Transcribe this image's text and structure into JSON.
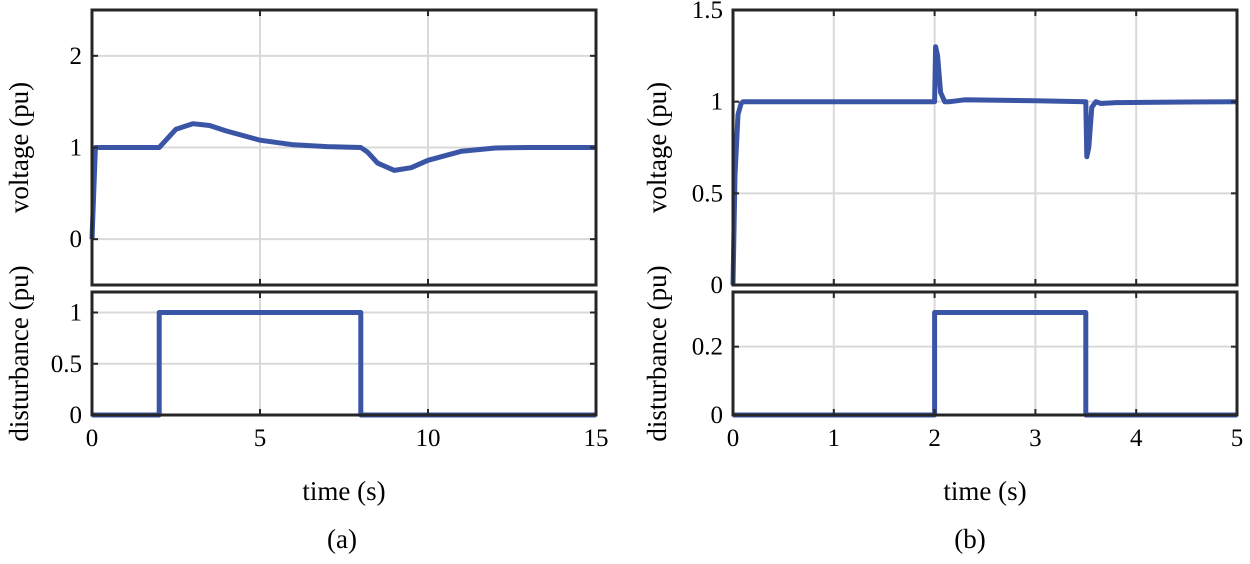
{
  "figure": {
    "colors": {
      "series": "#3b55a6",
      "axes": "#262626",
      "grid": "#d9d9d9"
    },
    "panel_labels": [
      "(a)",
      "(b)"
    ]
  },
  "chart_data": [
    {
      "id": "a-voltage",
      "type": "line",
      "xlabel": "",
      "ylabel": "voltage (pu)",
      "xlim": [
        0,
        15
      ],
      "ylim": [
        -0.5,
        2.5
      ],
      "xticks": [
        0,
        5,
        10,
        15
      ],
      "yticks": [
        0,
        1,
        2
      ],
      "ytick_labels": [
        "0",
        "1",
        "2"
      ],
      "show_xtick_labels": false,
      "grid": true,
      "series": [
        {
          "x": [
            0,
            0.1,
            2.0,
            2.2,
            2.5,
            3.0,
            3.5,
            4.0,
            5.0,
            6.0,
            7.0,
            8.0,
            8.2,
            8.5,
            9.0,
            9.5,
            10.0,
            11.0,
            12.0,
            13.0,
            14.0,
            15.0
          ],
          "y": [
            0,
            1.0,
            1.0,
            1.08,
            1.2,
            1.26,
            1.24,
            1.18,
            1.08,
            1.03,
            1.01,
            1.0,
            0.95,
            0.83,
            0.75,
            0.78,
            0.86,
            0.96,
            0.995,
            1.0,
            1.0,
            1.0
          ]
        }
      ]
    },
    {
      "id": "a-disturbance",
      "type": "line",
      "xlabel": "time (s)",
      "ylabel": "disturbance (pu)",
      "xlim": [
        0,
        15
      ],
      "ylim": [
        0,
        1.2
      ],
      "xticks": [
        0,
        5,
        10,
        15
      ],
      "xtick_labels": [
        "0",
        "5",
        "10",
        "15"
      ],
      "yticks": [
        0,
        0.5,
        1
      ],
      "ytick_labels": [
        "0",
        "0.5",
        "1"
      ],
      "show_xtick_labels": true,
      "grid": true,
      "series": [
        {
          "x": [
            0,
            2.0,
            2.0,
            8.0,
            8.0,
            15.0
          ],
          "y": [
            0,
            0,
            1,
            1,
            0,
            0
          ]
        }
      ]
    },
    {
      "id": "b-voltage",
      "type": "line",
      "xlabel": "",
      "ylabel": "voltage (pu)",
      "xlim": [
        0,
        5
      ],
      "ylim": [
        0,
        1.5
      ],
      "xticks": [
        0,
        1,
        2,
        3,
        4,
        5
      ],
      "yticks": [
        0,
        0.5,
        1,
        1.5
      ],
      "ytick_labels": [
        "0",
        "0.5",
        "1",
        "1.5"
      ],
      "show_xtick_labels": false,
      "grid": true,
      "series": [
        {
          "x": [
            0,
            0.02,
            0.05,
            0.08,
            0.1,
            2.0,
            2.01,
            2.03,
            2.06,
            2.1,
            2.15,
            2.3,
            3.0,
            3.5,
            3.51,
            3.53,
            3.56,
            3.6,
            3.65,
            3.8,
            4.5,
            5.0
          ],
          "y": [
            0,
            0.6,
            0.93,
            0.99,
            1.0,
            1.0,
            1.3,
            1.25,
            1.05,
            1.0,
            1.0,
            1.01,
            1.005,
            1.0,
            0.7,
            0.75,
            0.97,
            1.0,
            0.99,
            0.995,
            0.998,
            1.0
          ]
        }
      ]
    },
    {
      "id": "b-disturbance",
      "type": "line",
      "xlabel": "time (s)",
      "ylabel": "disturbance (pu)",
      "xlim": [
        0,
        5
      ],
      "ylim": [
        0,
        0.36
      ],
      "xticks": [
        0,
        1,
        2,
        3,
        4,
        5
      ],
      "xtick_labels": [
        "0",
        "1",
        "2",
        "3",
        "4",
        "5"
      ],
      "yticks": [
        0,
        0.2
      ],
      "ytick_labels": [
        "0",
        "0.2"
      ],
      "show_xtick_labels": true,
      "grid": true,
      "series": [
        {
          "x": [
            0,
            2.0,
            2.0,
            3.5,
            3.5,
            5.0
          ],
          "y": [
            0,
            0,
            0.3,
            0.3,
            0,
            0
          ]
        }
      ]
    }
  ]
}
